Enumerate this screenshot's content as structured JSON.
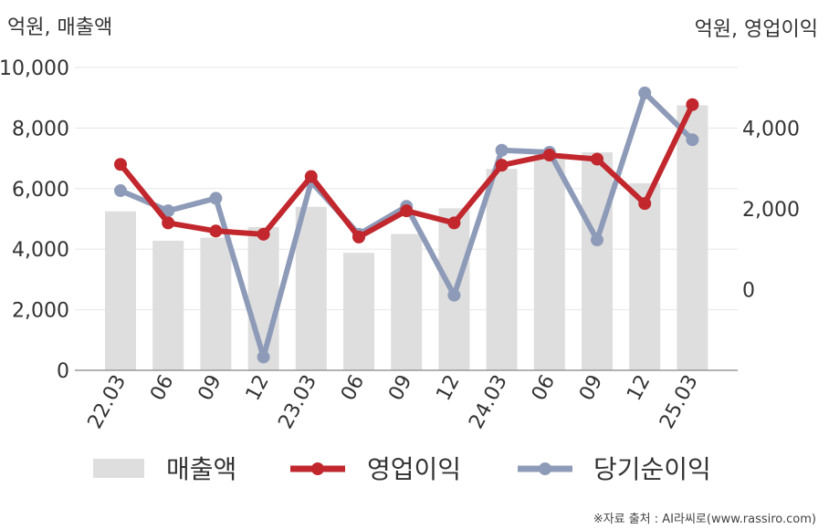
{
  "chart_data": {
    "type": "bar+line",
    "left_unit": "억원, 매출액",
    "right_unit": "억원, 영업이익",
    "categories": [
      "22.03",
      "06",
      "09",
      "12",
      "23.03",
      "06",
      "09",
      "12",
      "24.03",
      "06",
      "09",
      "12",
      "25.03"
    ],
    "left_axis": {
      "ylim": [
        0,
        10000
      ],
      "ticks": [
        "0",
        "2,000",
        "4,000",
        "6,000",
        "8,000",
        "10,000"
      ]
    },
    "right_axis": {
      "ylim": [
        -2000,
        5500
      ],
      "ticks": [
        "0",
        "2,000",
        "4,000"
      ]
    },
    "series": [
      {
        "name": "매출액",
        "kind": "bar",
        "axis": "left",
        "color": "#dedede",
        "values": [
          5250,
          4280,
          4380,
          4730,
          5400,
          3880,
          4500,
          5350,
          6650,
          7150,
          7200,
          6180,
          8750
        ]
      },
      {
        "name": "영업이익",
        "kind": "line",
        "axis": "right",
        "color": "#c1272d",
        "values": [
          3100,
          1650,
          1450,
          1370,
          2800,
          1300,
          1950,
          1650,
          3080,
          3330,
          3230,
          2130,
          4580
        ]
      },
      {
        "name": "당기순이익",
        "kind": "line",
        "axis": "right",
        "color": "#8e9bb8",
        "values": [
          2450,
          1950,
          2260,
          -1670,
          2670,
          1370,
          2060,
          -140,
          3450,
          3400,
          1230,
          4870,
          3710
        ]
      }
    ]
  },
  "legend": [
    {
      "label": "매출액"
    },
    {
      "label": "영업이익"
    },
    {
      "label": "당기순이익"
    }
  ],
  "source": "※자료 출처 : AI라씨로(www.rassiro.com)"
}
